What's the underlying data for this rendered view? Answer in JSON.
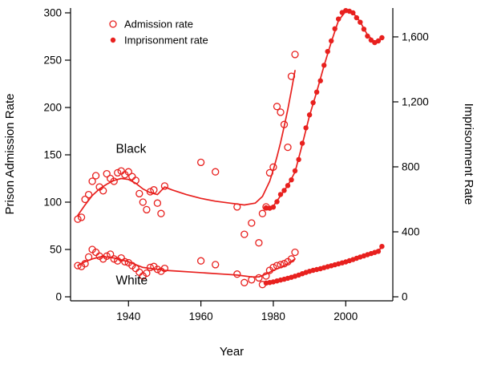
{
  "figure": {
    "background": "#ffffff",
    "accent_color": "#e8201e",
    "text_color": "#000000"
  },
  "chart_data": {
    "type": "scatter",
    "title": "",
    "xlabel": "Year",
    "ylabel_left": "Prison Admission Rate",
    "ylabel_right": "Imprisonment Rate",
    "xlim": [
      1924,
      2013
    ],
    "ylim_left": [
      0,
      300
    ],
    "ylim_right": [
      0,
      1748
    ],
    "x_ticks": [
      1940,
      1960,
      1980,
      2000
    ],
    "y_left_ticks": [
      0,
      50,
      100,
      150,
      200,
      250,
      300
    ],
    "y_right_ticks": [
      {
        "value": 0,
        "label": "0"
      },
      {
        "value": 400,
        "label": "400"
      },
      {
        "value": 800,
        "label": "800"
      },
      {
        "value": 1200,
        "label": "1,200"
      },
      {
        "value": 1600,
        "label": "1,600"
      }
    ],
    "grid": false,
    "legend": {
      "position": "top-left",
      "items": [
        {
          "label": "Admission rate",
          "marker": "open-circle"
        },
        {
          "label": "Imprisonment rate",
          "marker": "filled-circle"
        }
      ]
    },
    "annotations": [
      {
        "text": "Black",
        "x": 1936.5,
        "y_left": 152
      },
      {
        "text": "White",
        "x": 1936.5,
        "y_left": 13
      }
    ],
    "series": [
      {
        "name": "black-admission-smooth",
        "group": "Black",
        "measure": "Admission rate",
        "axis": "left",
        "style": "line",
        "points": [
          [
            1926,
            86
          ],
          [
            1928,
            97
          ],
          [
            1930,
            107
          ],
          [
            1932,
            114
          ],
          [
            1934,
            119
          ],
          [
            1936,
            123
          ],
          [
            1938,
            125
          ],
          [
            1940,
            124
          ],
          [
            1942,
            120
          ],
          [
            1944,
            114
          ],
          [
            1946,
            110
          ],
          [
            1948,
            108
          ],
          [
            1950,
            116
          ],
          [
            1952,
            113
          ],
          [
            1956,
            108
          ],
          [
            1960,
            104
          ],
          [
            1964,
            101
          ],
          [
            1968,
            99
          ],
          [
            1972,
            97
          ],
          [
            1975,
            99
          ],
          [
            1977,
            106
          ],
          [
            1979,
            122
          ],
          [
            1980,
            134
          ],
          [
            1981,
            148
          ],
          [
            1982,
            163
          ],
          [
            1983,
            180
          ],
          [
            1984,
            198
          ],
          [
            1985,
            218
          ],
          [
            1986,
            239
          ]
        ]
      },
      {
        "name": "black-admission-points",
        "group": "Black",
        "measure": "Admission rate",
        "axis": "left",
        "style": "open-points",
        "points": [
          [
            1926,
            82
          ],
          [
            1927,
            84
          ],
          [
            1928,
            103
          ],
          [
            1929,
            108
          ],
          [
            1930,
            122
          ],
          [
            1931,
            128
          ],
          [
            1932,
            116
          ],
          [
            1933,
            112
          ],
          [
            1934,
            130
          ],
          [
            1935,
            125
          ],
          [
            1936,
            122
          ],
          [
            1937,
            131
          ],
          [
            1938,
            133
          ],
          [
            1939,
            129
          ],
          [
            1940,
            132
          ],
          [
            1941,
            127
          ],
          [
            1942,
            123
          ],
          [
            1943,
            109
          ],
          [
            1944,
            100
          ],
          [
            1945,
            92
          ],
          [
            1946,
            111
          ],
          [
            1947,
            113
          ],
          [
            1948,
            99
          ],
          [
            1949,
            88
          ],
          [
            1950,
            117
          ],
          [
            1960,
            142
          ],
          [
            1964,
            132
          ],
          [
            1970,
            95
          ],
          [
            1972,
            66
          ],
          [
            1974,
            78
          ],
          [
            1976,
            57
          ],
          [
            1977,
            88
          ],
          [
            1978,
            95
          ],
          [
            1979,
            131
          ],
          [
            1980,
            137
          ],
          [
            1981,
            201
          ],
          [
            1982,
            195
          ],
          [
            1983,
            182
          ],
          [
            1984,
            158
          ],
          [
            1985,
            233
          ],
          [
            1986,
            256
          ]
        ]
      },
      {
        "name": "black-imprisonment-smooth",
        "group": "Black",
        "measure": "Imprisonment rate",
        "axis": "right",
        "style": "line",
        "points": [
          [
            1978,
            548
          ],
          [
            1980,
            558
          ],
          [
            1982,
            622
          ],
          [
            1984,
            686
          ],
          [
            1986,
            768
          ],
          [
            1988,
            938
          ],
          [
            1990,
            1115
          ],
          [
            1992,
            1262
          ],
          [
            1994,
            1422
          ],
          [
            1996,
            1568
          ],
          [
            1998,
            1700
          ],
          [
            2000,
            1758
          ],
          [
            2002,
            1750
          ],
          [
            2004,
            1692
          ],
          [
            2006,
            1612
          ],
          [
            2008,
            1568
          ],
          [
            2010,
            1592
          ]
        ]
      },
      {
        "name": "black-imprisonment-points",
        "group": "Black",
        "measure": "Imprisonment rate",
        "axis": "right",
        "style": "filled-points",
        "points": [
          [
            1978,
            548
          ],
          [
            1979,
            545
          ],
          [
            1980,
            552
          ],
          [
            1981,
            585
          ],
          [
            1982,
            630
          ],
          [
            1983,
            655
          ],
          [
            1984,
            685
          ],
          [
            1985,
            720
          ],
          [
            1986,
            775
          ],
          [
            1987,
            845
          ],
          [
            1988,
            945
          ],
          [
            1989,
            1040
          ],
          [
            1990,
            1120
          ],
          [
            1991,
            1195
          ],
          [
            1992,
            1260
          ],
          [
            1993,
            1330
          ],
          [
            1994,
            1425
          ],
          [
            1995,
            1510
          ],
          [
            1996,
            1575
          ],
          [
            1997,
            1650
          ],
          [
            1998,
            1710
          ],
          [
            1999,
            1750
          ],
          [
            2000,
            1762
          ],
          [
            2001,
            1758
          ],
          [
            2002,
            1748
          ],
          [
            2003,
            1718
          ],
          [
            2004,
            1690
          ],
          [
            2005,
            1648
          ],
          [
            2006,
            1605
          ],
          [
            2007,
            1580
          ],
          [
            2008,
            1565
          ],
          [
            2009,
            1575
          ],
          [
            2010,
            1595
          ]
        ]
      },
      {
        "name": "white-admission-smooth",
        "group": "White",
        "measure": "Admission rate",
        "axis": "left",
        "style": "line",
        "points": [
          [
            1926,
            33
          ],
          [
            1928,
            37
          ],
          [
            1930,
            40
          ],
          [
            1932,
            42
          ],
          [
            1934,
            42
          ],
          [
            1936,
            41
          ],
          [
            1938,
            39
          ],
          [
            1940,
            37
          ],
          [
            1942,
            34
          ],
          [
            1944,
            31
          ],
          [
            1946,
            30
          ],
          [
            1948,
            29
          ],
          [
            1950,
            28
          ],
          [
            1954,
            27
          ],
          [
            1958,
            26
          ],
          [
            1962,
            25
          ],
          [
            1966,
            24
          ],
          [
            1970,
            23
          ],
          [
            1974,
            21
          ],
          [
            1976,
            21
          ],
          [
            1978,
            24
          ],
          [
            1980,
            28
          ],
          [
            1982,
            31
          ],
          [
            1984,
            35
          ],
          [
            1986,
            40
          ]
        ]
      },
      {
        "name": "white-admission-points",
        "group": "White",
        "measure": "Admission rate",
        "axis": "left",
        "style": "open-points",
        "points": [
          [
            1926,
            33
          ],
          [
            1927,
            32
          ],
          [
            1928,
            35
          ],
          [
            1929,
            42
          ],
          [
            1930,
            50
          ],
          [
            1931,
            47
          ],
          [
            1932,
            43
          ],
          [
            1933,
            40
          ],
          [
            1934,
            43
          ],
          [
            1935,
            45
          ],
          [
            1936,
            40
          ],
          [
            1937,
            38
          ],
          [
            1938,
            41
          ],
          [
            1939,
            37
          ],
          [
            1940,
            36
          ],
          [
            1941,
            33
          ],
          [
            1942,
            30
          ],
          [
            1943,
            26
          ],
          [
            1944,
            22
          ],
          [
            1945,
            25
          ],
          [
            1946,
            31
          ],
          [
            1947,
            32
          ],
          [
            1948,
            29
          ],
          [
            1949,
            27
          ],
          [
            1950,
            30
          ],
          [
            1960,
            38
          ],
          [
            1964,
            34
          ],
          [
            1970,
            24
          ],
          [
            1972,
            15
          ],
          [
            1974,
            18
          ],
          [
            1976,
            20
          ],
          [
            1977,
            13
          ],
          [
            1978,
            22
          ],
          [
            1979,
            28
          ],
          [
            1980,
            31
          ],
          [
            1981,
            33
          ],
          [
            1982,
            34
          ],
          [
            1983,
            35
          ],
          [
            1984,
            37
          ],
          [
            1985,
            40
          ],
          [
            1986,
            47
          ]
        ]
      },
      {
        "name": "white-imprisonment-smooth",
        "group": "White",
        "measure": "Imprisonment rate",
        "axis": "right",
        "style": "line",
        "points": [
          [
            1978,
            86
          ],
          [
            1982,
            103
          ],
          [
            1986,
            127
          ],
          [
            1990,
            156
          ],
          [
            1994,
            179
          ],
          [
            1998,
            203
          ],
          [
            2002,
            229
          ],
          [
            2006,
            259
          ],
          [
            2010,
            300
          ]
        ]
      },
      {
        "name": "white-imprisonment-points",
        "group": "White",
        "measure": "Imprisonment rate",
        "axis": "right",
        "style": "filled-points",
        "points": [
          [
            1978,
            85
          ],
          [
            1979,
            88
          ],
          [
            1980,
            92
          ],
          [
            1981,
            98
          ],
          [
            1982,
            103
          ],
          [
            1983,
            108
          ],
          [
            1984,
            114
          ],
          [
            1985,
            120
          ],
          [
            1986,
            127
          ],
          [
            1987,
            134
          ],
          [
            1988,
            142
          ],
          [
            1989,
            150
          ],
          [
            1990,
            157
          ],
          [
            1991,
            163
          ],
          [
            1992,
            168
          ],
          [
            1993,
            173
          ],
          [
            1994,
            179
          ],
          [
            1995,
            185
          ],
          [
            1996,
            191
          ],
          [
            1997,
            197
          ],
          [
            1998,
            203
          ],
          [
            1999,
            209
          ],
          [
            2000,
            215
          ],
          [
            2001,
            222
          ],
          [
            2002,
            229
          ],
          [
            2003,
            237
          ],
          [
            2004,
            245
          ],
          [
            2005,
            252
          ],
          [
            2006,
            259
          ],
          [
            2007,
            266
          ],
          [
            2008,
            273
          ],
          [
            2009,
            280
          ],
          [
            2010,
            310
          ]
        ]
      }
    ]
  }
}
